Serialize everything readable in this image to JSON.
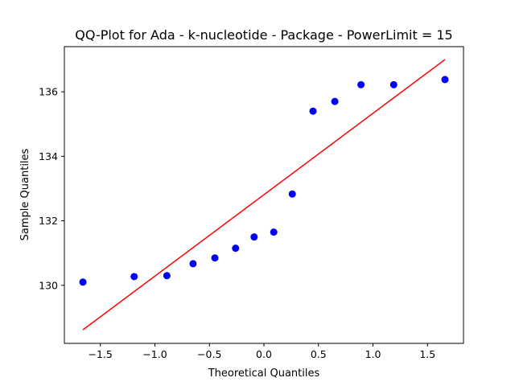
{
  "chart_data": {
    "type": "scatter",
    "title": "QQ-Plot for Ada - k-nucleotide - Package - PowerLimit = 15",
    "xlabel": "Theoretical Quantiles",
    "ylabel": "Sample Quantiles",
    "xlim": [
      -1.83,
      1.83
    ],
    "ylim": [
      128.2,
      137.4
    ],
    "xticks": [
      {
        "value": -1.5,
        "label": "−1.5"
      },
      {
        "value": -1.0,
        "label": "−1.0"
      },
      {
        "value": -0.5,
        "label": "−0.5"
      },
      {
        "value": 0.0,
        "label": "0.0"
      },
      {
        "value": 0.5,
        "label": "0.5"
      },
      {
        "value": 1.0,
        "label": "1.0"
      },
      {
        "value": 1.5,
        "label": "1.5"
      }
    ],
    "yticks": [
      {
        "value": 130,
        "label": "130"
      },
      {
        "value": 132,
        "label": "132"
      },
      {
        "value": 134,
        "label": "134"
      },
      {
        "value": 136,
        "label": "136"
      }
    ],
    "grid": false,
    "points": {
      "color": "#0000ff",
      "x": [
        -1.66,
        -1.19,
        -0.89,
        -0.65,
        -0.45,
        -0.26,
        -0.09,
        0.09,
        0.26,
        0.45,
        0.65,
        0.89,
        1.19,
        1.66
      ],
      "y": [
        130.1,
        130.27,
        130.3,
        130.67,
        130.85,
        131.15,
        131.5,
        131.65,
        132.83,
        135.4,
        135.7,
        136.22,
        136.22,
        136.38
      ]
    },
    "reference_line": {
      "color": "#ff0000",
      "x": [
        -1.66,
        1.66
      ],
      "y": [
        128.62,
        137.0
      ]
    }
  }
}
